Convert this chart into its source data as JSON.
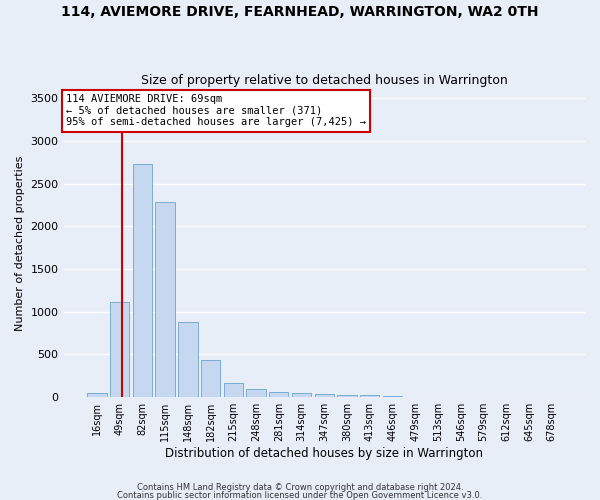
{
  "title": "114, AVIEMORE DRIVE, FEARNHEAD, WARRINGTON, WA2 0TH",
  "subtitle": "Size of property relative to detached houses in Warrington",
  "xlabel": "Distribution of detached houses by size in Warrington",
  "ylabel": "Number of detached properties",
  "bar_labels": [
    "16sqm",
    "49sqm",
    "82sqm",
    "115sqm",
    "148sqm",
    "182sqm",
    "215sqm",
    "248sqm",
    "281sqm",
    "314sqm",
    "347sqm",
    "380sqm",
    "413sqm",
    "446sqm",
    "479sqm",
    "513sqm",
    "546sqm",
    "579sqm",
    "612sqm",
    "645sqm",
    "678sqm"
  ],
  "bar_values": [
    55,
    1110,
    2730,
    2290,
    875,
    430,
    170,
    100,
    65,
    55,
    35,
    20,
    30,
    15,
    0,
    0,
    0,
    0,
    0,
    0,
    0
  ],
  "bar_color": "#c5d8ef",
  "bar_edgecolor": "#7aadd4",
  "annotation_text": "114 AVIEMORE DRIVE: 69sqm\n← 5% of detached houses are smaller (371)\n95% of semi-detached houses are larger (7,425) →",
  "annotation_box_color": "#ffffff",
  "annotation_box_edgecolor": "#cc0000",
  "redline_color": "#cc0000",
  "ylim": [
    0,
    3600
  ],
  "yticks": [
    0,
    500,
    1000,
    1500,
    2000,
    2500,
    3000,
    3500
  ],
  "footnote1": "Contains HM Land Registry data © Crown copyright and database right 2024.",
  "footnote2": "Contains public sector information licensed under the Open Government Licence v3.0.",
  "bg_color": "#e8eef8",
  "plot_bg_color": "#e8eef8",
  "grid_color": "#ffffff",
  "title_fontsize": 10,
  "subtitle_fontsize": 9
}
